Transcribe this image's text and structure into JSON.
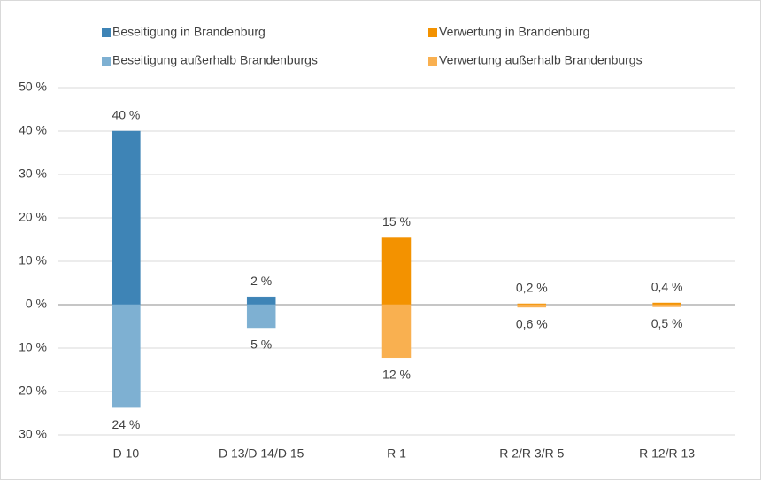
{
  "chart_data": {
    "type": "bar",
    "categories": [
      "D 10",
      "D 13/D 14/D 15",
      "R 1",
      "R 2/R 3/R 5",
      "R 12/R 13"
    ],
    "series": [
      {
        "name": "Beseitigung in Brandenburg",
        "color": "#3e84b6",
        "values": [
          40,
          1.8,
          null,
          null,
          null
        ],
        "value_labels": [
          "40 %",
          "2 %",
          null,
          null,
          null
        ]
      },
      {
        "name": "Beseitigung außerhalb Brandenburgs",
        "color": "#7eb0d2",
        "values": [
          -23.7,
          -5.3,
          null,
          null,
          null
        ],
        "value_labels": [
          "24 %",
          "5 %",
          null,
          null,
          null
        ]
      },
      {
        "name": "Verwertung in Brandenburg",
        "color": "#f39200",
        "values": [
          null,
          null,
          15.4,
          0.2,
          0.4
        ],
        "value_labels": [
          null,
          null,
          "15 %",
          "0,2 %",
          "0,4 %"
        ]
      },
      {
        "name": "Verwertung außerhalb Brandenburgs",
        "color": "#f9b050",
        "values": [
          null,
          null,
          -12.2,
          -0.6,
          -0.5
        ],
        "value_labels": [
          null,
          null,
          "12 %",
          "0,6 %",
          "0,5 %"
        ]
      }
    ],
    "ylim": [
      -30,
      50
    ],
    "yticks": [
      {
        "value": -30,
        "label": "30 %"
      },
      {
        "value": -20,
        "label": "20 %"
      },
      {
        "value": -10,
        "label": "10 %"
      },
      {
        "value": 0,
        "label": "0 %"
      },
      {
        "value": 10,
        "label": "10 %"
      },
      {
        "value": 20,
        "label": "20 %"
      },
      {
        "value": 30,
        "label": "30 %"
      },
      {
        "value": 40,
        "label": "40 %"
      },
      {
        "value": 50,
        "label": "50 %"
      }
    ],
    "grid": true
  }
}
